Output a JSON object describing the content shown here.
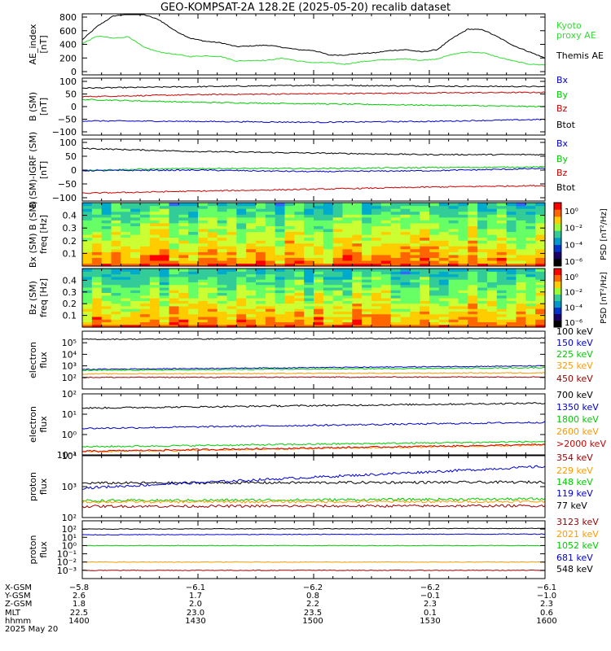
{
  "title": "GEO-KOMPSAT-2A 128.2E (2025-05-20) recalib dataset",
  "colors": {
    "black": "#000000",
    "blue": "#0000cc",
    "green": "#00cc00",
    "red": "#cc0000",
    "orange": "#ff9900",
    "darkred": "#990000",
    "lime": "#33dd33"
  },
  "chart_data": [
    {
      "type": "line",
      "ylabel": [
        "AE_index",
        "[nT]"
      ],
      "ylim": [
        0,
        800
      ],
      "yticks": [
        "800",
        "600",
        "400",
        "200",
        "0"
      ],
      "legend": [
        {
          "text": "Kyoto",
          "color": "#33dd33"
        },
        {
          "text": "proxy AE",
          "color": "#33dd33"
        },
        {
          "text": "Themis AE",
          "color": "#000000"
        }
      ],
      "series": [
        {
          "name": "Themis AE",
          "color": "#000000",
          "x": [
            1400,
            1404,
            1408,
            1412,
            1416,
            1420,
            1424,
            1428,
            1432,
            1436,
            1440,
            1444,
            1448,
            1452,
            1456,
            1500,
            1504,
            1508,
            1512,
            1516,
            1520,
            1524,
            1528,
            1532,
            1536,
            1540,
            1544,
            1548,
            1552,
            1556,
            1600
          ],
          "values": [
            460,
            640,
            770,
            800,
            790,
            720,
            580,
            480,
            440,
            420,
            370,
            380,
            390,
            360,
            330,
            320,
            260,
            260,
            280,
            290,
            320,
            330,
            300,
            330,
            480,
            600,
            590,
            490,
            380,
            300,
            220
          ]
        },
        {
          "name": "Kyoto proxy AE",
          "color": "#33dd33",
          "x": [
            1400,
            1404,
            1408,
            1412,
            1416,
            1420,
            1424,
            1428,
            1432,
            1436,
            1440,
            1444,
            1448,
            1452,
            1456,
            1500,
            1504,
            1508,
            1512,
            1516,
            1520,
            1524,
            1528,
            1532,
            1536,
            1540,
            1544,
            1548,
            1552,
            1556,
            1600
          ],
          "values": [
            410,
            510,
            480,
            500,
            360,
            300,
            270,
            240,
            250,
            240,
            180,
            190,
            190,
            220,
            180,
            160,
            160,
            140,
            170,
            190,
            200,
            210,
            190,
            210,
            270,
            300,
            290,
            230,
            180,
            140,
            130
          ]
        }
      ]
    },
    {
      "type": "line",
      "ylabel": [
        "B (SM)",
        "[nT]"
      ],
      "ylim": [
        -100,
        100
      ],
      "yticks": [
        "100",
        "50",
        "0",
        "−50",
        "−100"
      ],
      "legend": [
        {
          "text": "Bx",
          "color": "#0000cc"
        },
        {
          "text": "By",
          "color": "#00cc00"
        },
        {
          "text": "Bz",
          "color": "#cc0000"
        },
        {
          "text": "Btot",
          "color": "#000000"
        }
      ],
      "series": [
        {
          "name": "Btot",
          "color": "#000000",
          "x": [
            1400,
            1430,
            1500,
            1530,
            1600
          ],
          "values": [
            65,
            70,
            75,
            72,
            70
          ]
        },
        {
          "name": "Bz",
          "color": "#cc0000",
          "x": [
            1400,
            1430,
            1500,
            1530,
            1600
          ],
          "values": [
            35,
            42,
            45,
            48,
            50
          ]
        },
        {
          "name": "By",
          "color": "#00cc00",
          "x": [
            1400,
            1430,
            1500,
            1530,
            1600
          ],
          "values": [
            25,
            15,
            10,
            5,
            0
          ]
        },
        {
          "name": "Bx",
          "color": "#0000cc",
          "x": [
            1400,
            1430,
            1500,
            1530,
            1600
          ],
          "values": [
            -50,
            -52,
            -55,
            -52,
            -45
          ]
        }
      ]
    },
    {
      "type": "line",
      "ylabel": [
        "B (SM)-IGRF (SM)",
        "[nT]"
      ],
      "ylim": [
        -100,
        100
      ],
      "yticks": [
        "100",
        "50",
        "0",
        "−50",
        "−100"
      ],
      "legend": [
        {
          "text": "Bx",
          "color": "#0000cc"
        },
        {
          "text": "By",
          "color": "#00cc00"
        },
        {
          "text": "Bz",
          "color": "#cc0000"
        },
        {
          "text": "Btot",
          "color": "#000000"
        }
      ],
      "series": [
        {
          "name": "Btot",
          "color": "#000000",
          "x": [
            1400,
            1430,
            1500,
            1530,
            1600
          ],
          "values": [
            70,
            60,
            55,
            50,
            50
          ]
        },
        {
          "name": "By",
          "color": "#00cc00",
          "x": [
            1400,
            1430,
            1500,
            1530,
            1600
          ],
          "values": [
            0,
            5,
            5,
            8,
            10
          ]
        },
        {
          "name": "Bx",
          "color": "#0000cc",
          "x": [
            1400,
            1430,
            1500,
            1530,
            1600
          ],
          "values": [
            -2,
            0,
            -5,
            -2,
            5
          ]
        },
        {
          "name": "Bz",
          "color": "#cc0000",
          "x": [
            1400,
            1430,
            1500,
            1530,
            1600
          ],
          "values": [
            -75,
            -68,
            -62,
            -55,
            -50
          ]
        }
      ]
    },
    {
      "type": "heatmap",
      "ylabel": [
        "Bx (SM) B (SM)",
        "freq [Hz]"
      ],
      "ylim": [
        0,
        0.5
      ],
      "yticks": [
        "0.4",
        "0.3",
        "0.2",
        "0.1"
      ],
      "colorbar_label": "PSD [nT²/Hz]",
      "colorbar_ticks": [
        "10⁰",
        "10⁻²",
        "10⁻⁴",
        "10⁻⁶"
      ]
    },
    {
      "type": "heatmap",
      "ylabel": [
        "Bz (SM)",
        "freq [Hz]"
      ],
      "ylim": [
        0,
        0.5
      ],
      "yticks": [
        "0.4",
        "0.3",
        "0.2",
        "0.1"
      ],
      "colorbar_label": "PSD [nT²/Hz]",
      "colorbar_ticks": [
        "10⁰",
        "10⁻²",
        "10⁻⁴",
        "10⁻⁶"
      ]
    },
    {
      "type": "line",
      "scale": "log",
      "ylabel": [
        "electron",
        "flux"
      ],
      "ylim": [
        10,
        1000000
      ],
      "yticks": [
        "10⁵",
        "10⁴",
        "10³",
        "10²"
      ],
      "legend": [
        {
          "text": "100 keV",
          "color": "#000000"
        },
        {
          "text": "150 keV",
          "color": "#0000cc"
        },
        {
          "text": "225 keV",
          "color": "#00cc00"
        },
        {
          "text": "325 keV",
          "color": "#ff9900"
        },
        {
          "text": "450 keV",
          "color": "#990000"
        }
      ],
      "series": [
        {
          "name": "100 keV",
          "color": "#000000",
          "x": [
            1400,
            1600
          ],
          "values": [
            200000,
            250000
          ]
        },
        {
          "name": "150 keV",
          "color": "#0000cc",
          "x": [
            1400,
            1600
          ],
          "values": [
            500,
            1000
          ]
        },
        {
          "name": "225 keV",
          "color": "#00cc00",
          "x": [
            1400,
            1600
          ],
          "values": [
            400,
            700
          ]
        },
        {
          "name": "325 keV",
          "color": "#ff9900",
          "x": [
            1400,
            1600
          ],
          "values": [
            200,
            250
          ]
        },
        {
          "name": "450 keV",
          "color": "#990000",
          "x": [
            1400,
            1600
          ],
          "values": [
            100,
            110
          ]
        }
      ]
    },
    {
      "type": "line",
      "scale": "log",
      "ylabel": [
        "electron",
        "flux"
      ],
      "ylim": [
        0.1,
        100
      ],
      "yticks": [
        "10²",
        "10¹",
        "10⁰",
        "10⁻¹"
      ],
      "legend": [
        {
          "text": "700 keV",
          "color": "#000000"
        },
        {
          "text": "1350 keV",
          "color": "#0000cc"
        },
        {
          "text": "1800 keV",
          "color": "#00cc00"
        },
        {
          "text": "2600 keV",
          "color": "#ff9900"
        },
        {
          "text": ">2000 keV",
          "color": "#cc0000"
        }
      ],
      "series": [
        {
          "name": "700 keV",
          "color": "#000000",
          "x": [
            1400,
            1600
          ],
          "values": [
            20,
            35
          ]
        },
        {
          "name": "1350 keV",
          "color": "#0000cc",
          "x": [
            1400,
            1600
          ],
          "values": [
            2,
            4
          ]
        },
        {
          "name": "1800 keV",
          "color": "#00cc00",
          "x": [
            1400,
            1600
          ],
          "values": [
            0.25,
            0.45
          ]
        },
        {
          "name": "2600 keV",
          "color": "#ff9900",
          "x": [
            1400,
            1600
          ],
          "values": [
            0.14,
            0.3
          ]
        },
        {
          "name": ">2000 keV",
          "color": "#cc0000",
          "x": [
            1400,
            1600
          ],
          "values": [
            0.15,
            0.32
          ]
        }
      ]
    },
    {
      "type": "line",
      "scale": "log",
      "ylabel": [
        "proton",
        "flux"
      ],
      "ylim": [
        100,
        10000
      ],
      "yticks": [
        "10⁴",
        "10³",
        "10²"
      ],
      "legend": [
        {
          "text": "354 keV",
          "color": "#990000"
        },
        {
          "text": "229 keV",
          "color": "#ff9900"
        },
        {
          "text": "148 keV",
          "color": "#00cc00"
        },
        {
          "text": "119 keV",
          "color": "#0000cc"
        },
        {
          "text": "77 keV",
          "color": "#000000"
        }
      ],
      "series": [
        {
          "name": "77 keV",
          "color": "#000000",
          "x": [
            1400,
            1600
          ],
          "values": [
            1300,
            1400
          ]
        },
        {
          "name": "119 keV",
          "color": "#0000cc",
          "x": [
            1400,
            1600
          ],
          "values": [
            900,
            4500
          ]
        },
        {
          "name": "148 keV",
          "color": "#00cc00",
          "x": [
            1400,
            1600
          ],
          "values": [
            350,
            400
          ]
        },
        {
          "name": "229 keV",
          "color": "#ff9900",
          "x": [
            1400,
            1600
          ],
          "values": [
            320,
            330
          ]
        },
        {
          "name": "354 keV",
          "color": "#990000",
          "x": [
            1400,
            1600
          ],
          "values": [
            230,
            240
          ]
        }
      ]
    },
    {
      "type": "line",
      "scale": "log",
      "ylabel": [
        "proton",
        "flux"
      ],
      "ylim": [
        0.0001,
        1000
      ],
      "yticks": [
        "10²",
        "10¹",
        "10⁰",
        "10⁻¹",
        "10⁻²",
        "10⁻³"
      ],
      "legend": [
        {
          "text": "3123 keV",
          "color": "#990000"
        },
        {
          "text": "2021 keV",
          "color": "#ff9900"
        },
        {
          "text": "1052 keV",
          "color": "#00cc00"
        },
        {
          "text": "681 keV",
          "color": "#0000cc"
        },
        {
          "text": "548 keV",
          "color": "#000000"
        }
      ],
      "series": [
        {
          "name": "548 keV",
          "color": "#000000",
          "x": [
            1400,
            1600
          ],
          "values": [
            100,
            120
          ]
        },
        {
          "name": "681 keV",
          "color": "#0000cc",
          "x": [
            1400,
            1600
          ],
          "values": [
            20,
            25
          ]
        },
        {
          "name": "1052 keV",
          "color": "#00cc00",
          "x": [
            1400,
            1600
          ],
          "values": [
            1,
            1
          ]
        },
        {
          "name": "2021 keV",
          "color": "#ff9900",
          "x": [
            1400,
            1600
          ],
          "values": [
            0.01,
            0.01
          ]
        },
        {
          "name": "3123 keV",
          "color": "#990000",
          "x": [
            1400,
            1600
          ],
          "values": [
            0.001,
            0.001
          ]
        }
      ]
    }
  ],
  "x_axis": {
    "row_labels": [
      "X-GSM",
      "Y-GSM",
      "Z-GSM",
      "MLT",
      "hhmm",
      "2025 May 20"
    ],
    "columns": [
      [
        "−5.8",
        "2.6",
        "1.8",
        "22.5",
        "1400"
      ],
      [
        "−6.1",
        "1.7",
        "2.0",
        "23.0",
        "1430"
      ],
      [
        "−6.2",
        "0.8",
        "2.2",
        "23.5",
        "1500"
      ],
      [
        "−6.2",
        "−0.1",
        "2.3",
        "0.1",
        "1530"
      ],
      [
        "−6.1",
        "−1.0",
        "2.3",
        "0.6",
        "1600"
      ]
    ]
  }
}
